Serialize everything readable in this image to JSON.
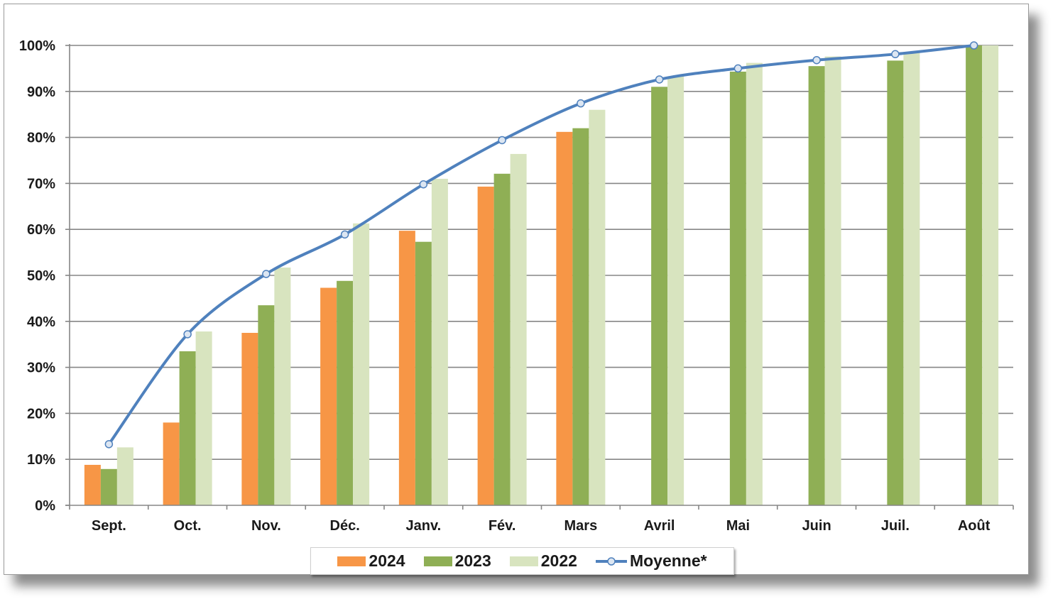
{
  "chart_data": {
    "type": "bar",
    "categories": [
      "Sept.",
      "Oct.",
      "Nov.",
      "Déc.",
      "Janv.",
      "Fév.",
      "Mars",
      "Avril",
      "Mai",
      "Juin",
      "Juil.",
      "Août"
    ],
    "y_ticks": [
      "0%",
      "10%",
      "20%",
      "30%",
      "40%",
      "50%",
      "60%",
      "70%",
      "80%",
      "90%",
      "100%"
    ],
    "ylim": [
      0,
      100
    ],
    "grid": true,
    "legend_position": "bottom",
    "series": [
      {
        "name": "2024",
        "kind": "bar",
        "color": "#f79646",
        "values": [
          8.8,
          18.0,
          37.5,
          47.3,
          59.7,
          69.3,
          81.2,
          null,
          null,
          null,
          null,
          null
        ]
      },
      {
        "name": "2023",
        "kind": "bar",
        "color": "#8faf55",
        "values": [
          7.9,
          33.5,
          43.5,
          48.8,
          57.3,
          72.1,
          82.0,
          91.0,
          94.3,
          95.5,
          96.7,
          100.0
        ]
      },
      {
        "name": "2022",
        "kind": "bar",
        "color": "#d8e4bf",
        "values": [
          12.6,
          37.8,
          51.7,
          61.3,
          71.0,
          76.4,
          86.0,
          93.3,
          96.2,
          97.6,
          98.5,
          100.0
        ]
      },
      {
        "name": "Moyenne*",
        "kind": "line",
        "color": "#4f81bd",
        "values": [
          13.3,
          37.2,
          50.3,
          58.9,
          69.8,
          79.4,
          87.4,
          92.6,
          95.0,
          96.8,
          98.1,
          100.0
        ]
      }
    ]
  }
}
